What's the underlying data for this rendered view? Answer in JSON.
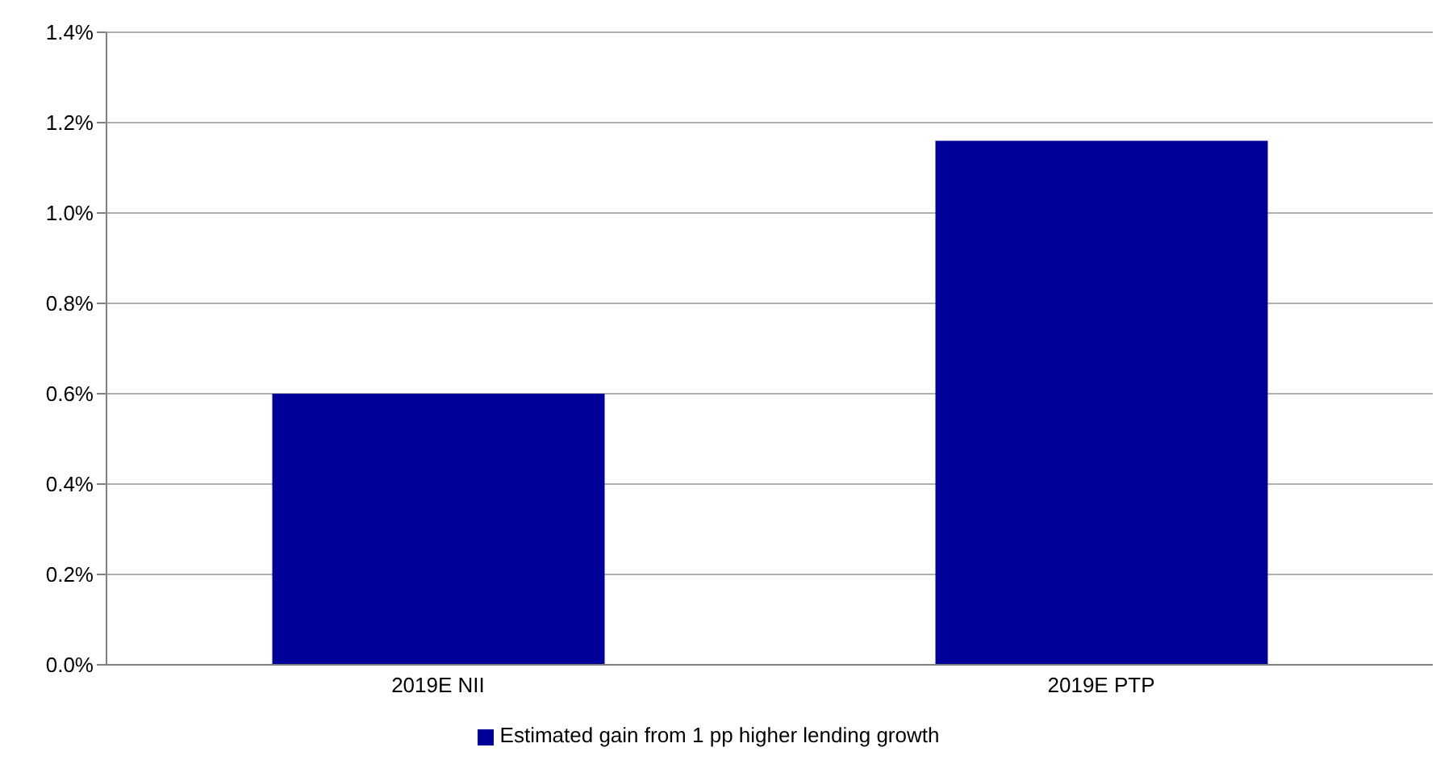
{
  "chart_data": {
    "type": "bar",
    "categories": [
      "2019E NII",
      "2019E PTP"
    ],
    "series": [
      {
        "name": "Estimated gain from 1 pp higher lending growth",
        "color": "#000099",
        "values": [
          0.6,
          1.16
        ]
      }
    ],
    "ylim": [
      0,
      1.4
    ],
    "yticks": [
      {
        "value": 0,
        "label": "0.0%"
      },
      {
        "value": 0.2,
        "label": "0.2%"
      },
      {
        "value": 0.4,
        "label": "0.4%"
      },
      {
        "value": 0.6,
        "label": "0.6%"
      },
      {
        "value": 0.8,
        "label": "0.8%"
      },
      {
        "value": 1.0,
        "label": "1.0%"
      },
      {
        "value": 1.2,
        "label": "1.2%"
      },
      {
        "value": 1.4,
        "label": "1.4%"
      }
    ],
    "grid": "y",
    "legend": "bottom"
  }
}
